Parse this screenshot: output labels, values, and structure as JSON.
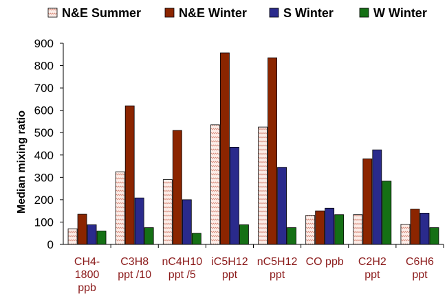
{
  "chart_data": {
    "type": "bar",
    "title": "",
    "xlabel": "",
    "ylabel": "Median mixing ratio",
    "ylim": [
      0,
      900
    ],
    "yticks": [
      0,
      100,
      200,
      300,
      400,
      500,
      600,
      700,
      800,
      900
    ],
    "grid": false,
    "legend_position": "top",
    "categories": [
      [
        "CH4-",
        "1800",
        "ppb"
      ],
      [
        "C3H8",
        "ppt /10"
      ],
      [
        "nC4H10",
        "ppt /5"
      ],
      [
        "iC5H12",
        "ppt"
      ],
      [
        "nC5H12",
        "ppt"
      ],
      [
        "CO ppb"
      ],
      [
        "C2H2",
        "ppt"
      ],
      [
        "C6H6",
        "ppt"
      ]
    ],
    "series": [
      {
        "name": "N&E Summer",
        "color": "#F6DCD4",
        "pattern": "zigzag",
        "values": [
          70,
          325,
          290,
          535,
          525,
          130,
          133,
          90
        ]
      },
      {
        "name": "N&E Winter",
        "color": "#8B2500",
        "values": [
          135,
          620,
          510,
          857,
          835,
          150,
          383,
          158
        ]
      },
      {
        "name": "S Winter",
        "color": "#2A2A8C",
        "values": [
          88,
          208,
          200,
          435,
          345,
          162,
          423,
          140
        ]
      },
      {
        "name": "W Winter",
        "color": "#157015",
        "values": [
          60,
          75,
          50,
          88,
          75,
          133,
          283,
          75
        ]
      }
    ]
  }
}
